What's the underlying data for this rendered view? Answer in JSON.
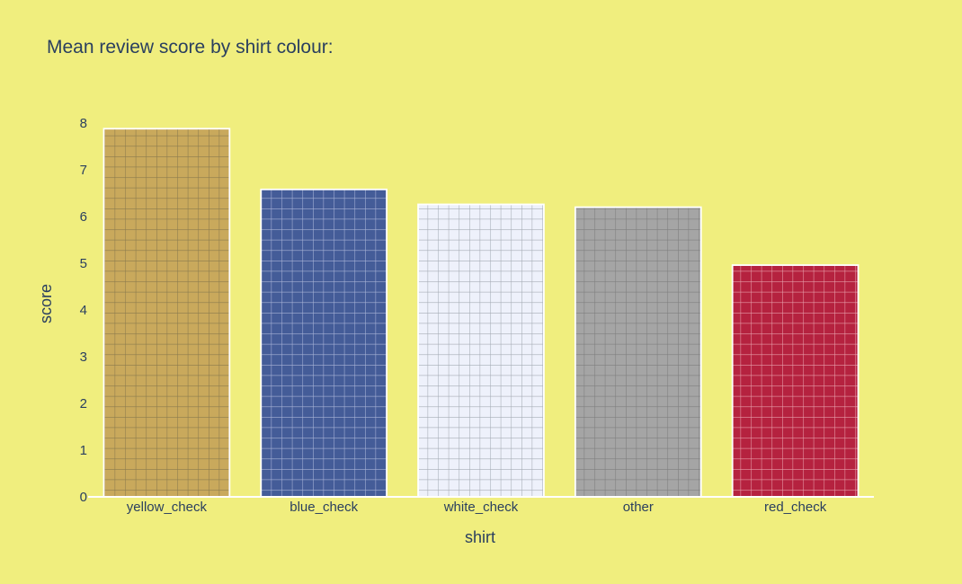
{
  "chart_data": {
    "type": "bar",
    "title": "Mean review score by shirt colour:",
    "xlabel": "shirt",
    "ylabel": "score",
    "categories": [
      "yellow_check",
      "blue_check",
      "white_check",
      "other",
      "red_check"
    ],
    "values": [
      7.88,
      6.58,
      6.26,
      6.2,
      4.96
    ],
    "ylim": [
      0,
      8.0
    ],
    "yticks": [
      0,
      1,
      2,
      3,
      4,
      5,
      6,
      7,
      8
    ],
    "grid": false,
    "legend": "none",
    "pattern": "grid",
    "colors": [
      "#c9a95c",
      "#445c98",
      "#eef1fb",
      "#a5a5a5",
      "#b5223f"
    ],
    "pattern_line_colors": [
      "#8a7a4c",
      "#aab5d8",
      "#a4aab3",
      "#7d7d7d",
      "#e8a0ab"
    ],
    "background": "#f0ee7e",
    "axis_line_color": "#ffffff"
  }
}
